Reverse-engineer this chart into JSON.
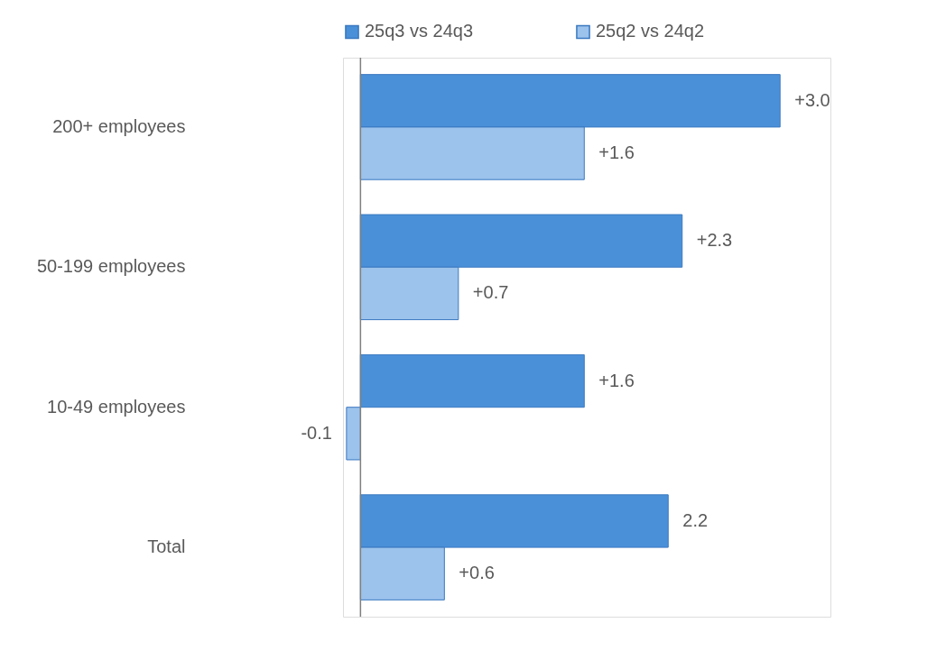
{
  "chart_data": {
    "type": "bar",
    "orientation": "horizontal",
    "categories": [
      "200+ employees",
      "50-199 employees",
      "10-49 employees",
      "Total"
    ],
    "series": [
      {
        "name": "25q3 vs 24q3",
        "color": "#4a90d9",
        "values": [
          3.0,
          2.3,
          1.6,
          2.2
        ],
        "value_labels": [
          "+3.0",
          "+2.3",
          "+1.6",
          "2.2"
        ]
      },
      {
        "name": "25q2 vs 24q2",
        "color": "#9cc3ec",
        "values": [
          1.6,
          0.7,
          -0.1,
          0.6
        ],
        "value_labels": [
          "+1.6",
          "+0.7",
          "-0.1",
          "+0.6"
        ]
      }
    ],
    "legend": "top"
  }
}
